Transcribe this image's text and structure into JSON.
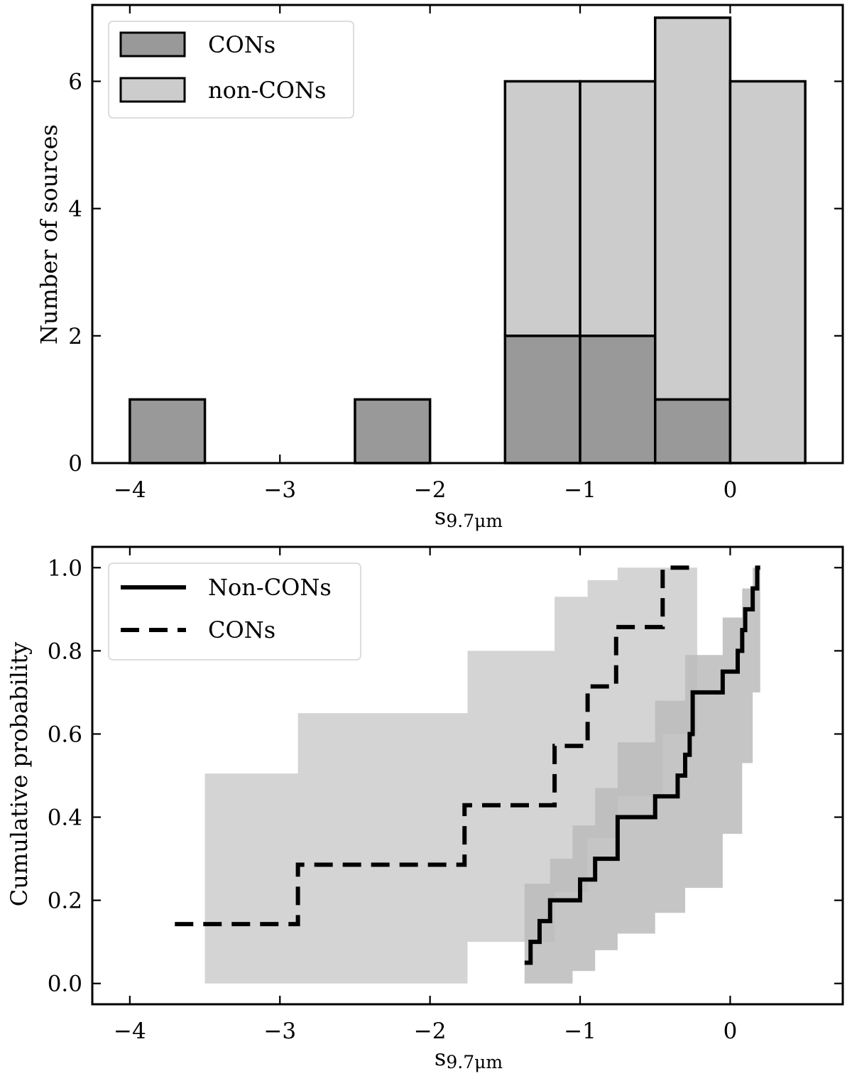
{
  "chart_data": [
    {
      "type": "bar",
      "subtype": "stacked-histogram",
      "xlabel_main": "s",
      "xlabel_sub": "9.7μm",
      "ylabel": "Number of sources",
      "xlim": [
        -4.25,
        0.75
      ],
      "ylim": [
        0,
        7.2
      ],
      "xticks": [
        -4,
        -3,
        -2,
        -1,
        0
      ],
      "xtick_labels": [
        "−4",
        "−3",
        "−2",
        "−1",
        "0"
      ],
      "yticks": [
        0,
        2,
        4,
        6
      ],
      "ytick_labels": [
        "0",
        "2",
        "4",
        "6"
      ],
      "bin_edges": [
        -4.0,
        -3.5,
        -3.0,
        -2.5,
        -2.0,
        -1.5,
        -1.0,
        -0.5,
        0.0,
        0.5
      ],
      "series": [
        {
          "name": "CONs",
          "color": "#999999",
          "values": [
            1,
            0,
            0,
            1,
            0,
            2,
            2,
            1,
            0
          ]
        },
        {
          "name": "non-CONs",
          "color": "#cccccc",
          "values": [
            0,
            0,
            0,
            0,
            0,
            4,
            4,
            6,
            6
          ]
        }
      ],
      "legend": {
        "position": "upper-left",
        "labels": [
          "CONs",
          "non-CONs"
        ]
      }
    },
    {
      "type": "line",
      "subtype": "step-cdf",
      "xlabel_main": "s",
      "xlabel_sub": "9.7μm",
      "ylabel": "Cumulative probability",
      "xlim": [
        -4.25,
        0.75
      ],
      "ylim": [
        -0.05,
        1.05
      ],
      "xticks": [
        -4,
        -3,
        -2,
        -1,
        0
      ],
      "xtick_labels": [
        "−4",
        "−3",
        "−2",
        "−1",
        "0"
      ],
      "yticks": [
        0.0,
        0.2,
        0.4,
        0.6,
        0.8,
        1.0
      ],
      "ytick_labels": [
        "0.0",
        "0.2",
        "0.4",
        "0.6",
        "0.8",
        "1.0"
      ],
      "series": [
        {
          "name": "Non-CONs",
          "style": "solid",
          "x": [
            -1.37,
            -1.33,
            -1.27,
            -1.2,
            -1.05,
            -1.0,
            -0.9,
            -0.75,
            -0.5,
            -0.45,
            -0.35,
            -0.3,
            -0.27,
            -0.25,
            -0.05,
            0.05,
            0.08,
            0.1,
            0.15,
            0.18,
            0.2
          ],
          "y": [
            0.05,
            0.1,
            0.15,
            0.2,
            0.2,
            0.25,
            0.3,
            0.4,
            0.45,
            0.45,
            0.5,
            0.55,
            0.6,
            0.7,
            0.75,
            0.8,
            0.85,
            0.9,
            0.95,
            1.0,
            1.0
          ]
        },
        {
          "name": "CONs",
          "style": "dashed",
          "x": [
            -3.7,
            -2.88,
            -1.77,
            -1.17,
            -0.95,
            -0.76,
            -0.45,
            -0.22
          ],
          "y": [
            0.1429,
            0.2857,
            0.4286,
            0.5714,
            0.7143,
            0.8571,
            1.0,
            1.0
          ]
        }
      ],
      "bands": [
        {
          "name": "CONs confidence band",
          "color": "#cccccc",
          "steps": [
            {
              "x0": -3.5,
              "x1": -2.88,
              "lo": 0.0,
              "hi": 0.505
            },
            {
              "x0": -2.88,
              "x1": -1.75,
              "lo": 0.0,
              "hi": 0.65
            },
            {
              "x0": -1.75,
              "x1": -1.17,
              "lo": 0.1,
              "hi": 0.8
            },
            {
              "x0": -1.17,
              "x1": -0.95,
              "lo": 0.22,
              "hi": 0.93
            },
            {
              "x0": -0.95,
              "x1": -0.75,
              "lo": 0.35,
              "hi": 0.97
            },
            {
              "x0": -0.75,
              "x1": -0.45,
              "lo": 0.45,
              "hi": 1.0
            },
            {
              "x0": -0.45,
              "x1": -0.22,
              "lo": 0.6,
              "hi": 1.0
            }
          ]
        },
        {
          "name": "Non-CONs confidence band",
          "color": "#bbbbbb",
          "steps": [
            {
              "x0": -1.37,
              "x1": -1.2,
              "lo": 0.0,
              "hi": 0.24
            },
            {
              "x0": -1.2,
              "x1": -1.05,
              "lo": 0.0,
              "hi": 0.3
            },
            {
              "x0": -1.05,
              "x1": -0.9,
              "lo": 0.03,
              "hi": 0.38
            },
            {
              "x0": -0.9,
              "x1": -0.75,
              "lo": 0.08,
              "hi": 0.47
            },
            {
              "x0": -0.75,
              "x1": -0.5,
              "lo": 0.12,
              "hi": 0.58
            },
            {
              "x0": -0.5,
              "x1": -0.3,
              "lo": 0.17,
              "hi": 0.68
            },
            {
              "x0": -0.3,
              "x1": -0.05,
              "lo": 0.23,
              "hi": 0.79
            },
            {
              "x0": -0.05,
              "x1": 0.08,
              "lo": 0.36,
              "hi": 0.88
            },
            {
              "x0": 0.08,
              "x1": 0.15,
              "lo": 0.53,
              "hi": 0.95
            },
            {
              "x0": 0.15,
              "x1": 0.2,
              "lo": 0.7,
              "hi": 1.0
            }
          ]
        }
      ],
      "legend": {
        "position": "upper-left",
        "labels": [
          "Non-CONs",
          "CONs"
        ]
      }
    }
  ]
}
